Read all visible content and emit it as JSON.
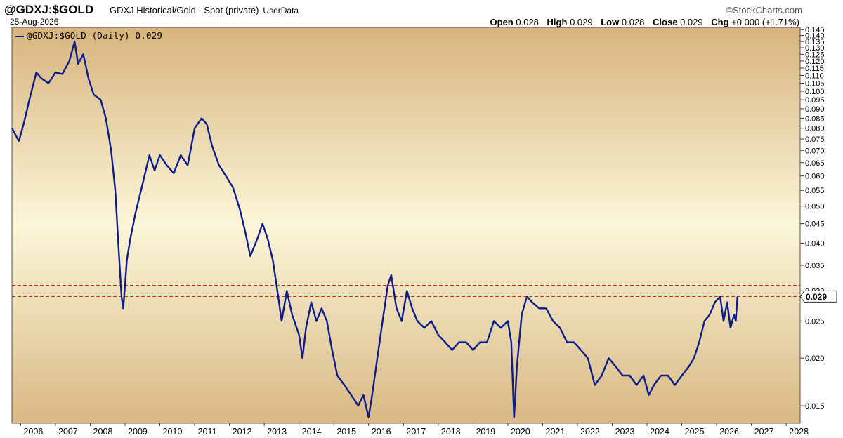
{
  "header": {
    "symbol": "@GDXJ:$GOLD",
    "description": "GDXJ Historical/Gold - Spot (private)",
    "userdata": "UserData",
    "date": "25-Aug-2026",
    "brand": "©StockCharts.com",
    "open_label": "Open",
    "open_value": "0.028",
    "high_label": "High",
    "high_value": "0.029",
    "low_label": "Low",
    "low_value": "0.028",
    "close_label": "Close",
    "close_value": "0.029",
    "chg_label": "Chg",
    "chg_value": "+0.000 (+1.71%)"
  },
  "legend": {
    "text": "@GDXJ:$GOLD (Daily) 0.029"
  },
  "colors": {
    "line": "#0b1d8c",
    "reference_lines": "#e8211c",
    "bg_top": "#d8b47e",
    "bg_mid": "#fbf6d8",
    "bg_bottom": "#d9b883"
  },
  "chart_data": {
    "type": "line",
    "scale": "log",
    "grid": false,
    "legend_position": "top-left",
    "xlim": [
      2005.75,
      2028.4
    ],
    "ylim": [
      0.0135,
      0.147
    ],
    "x_ticks": [
      "2006",
      "2007",
      "2008",
      "2009",
      "2010",
      "2011",
      "2012",
      "2013",
      "2014",
      "2015",
      "2016",
      "2017",
      "2018",
      "2019",
      "2020",
      "2021",
      "2022",
      "2023",
      "2024",
      "2025",
      "2026",
      "2027",
      "2028"
    ],
    "y_ticks": [
      "0.015",
      "0.020",
      "0.025",
      "0.030",
      "0.035",
      "0.040",
      "0.045",
      "0.050",
      "0.055",
      "0.060",
      "0.065",
      "0.070",
      "0.075",
      "0.080",
      "0.085",
      "0.090",
      "0.095",
      "0.100",
      "0.105",
      "0.110",
      "0.115",
      "0.120",
      "0.125",
      "0.130",
      "0.135",
      "0.140",
      "0.145"
    ],
    "last_value_label": "0.029",
    "reference_lines": [
      0.029,
      0.031
    ],
    "series": [
      {
        "values": [
          [
            2005.75,
            0.08
          ],
          [
            2005.95,
            0.074
          ],
          [
            2006.1,
            0.083
          ],
          [
            2006.25,
            0.095
          ],
          [
            2006.45,
            0.112
          ],
          [
            2006.6,
            0.108
          ],
          [
            2006.8,
            0.105
          ],
          [
            2007.0,
            0.112
          ],
          [
            2007.2,
            0.111
          ],
          [
            2007.4,
            0.12
          ],
          [
            2007.55,
            0.135
          ],
          [
            2007.65,
            0.118
          ],
          [
            2007.8,
            0.125
          ],
          [
            2007.95,
            0.108
          ],
          [
            2008.1,
            0.098
          ],
          [
            2008.3,
            0.095
          ],
          [
            2008.45,
            0.085
          ],
          [
            2008.6,
            0.07
          ],
          [
            2008.72,
            0.055
          ],
          [
            2008.82,
            0.038
          ],
          [
            2008.9,
            0.029
          ],
          [
            2008.95,
            0.027
          ],
          [
            2009.05,
            0.036
          ],
          [
            2009.15,
            0.041
          ],
          [
            2009.3,
            0.048
          ],
          [
            2009.5,
            0.057
          ],
          [
            2009.7,
            0.068
          ],
          [
            2009.85,
            0.062
          ],
          [
            2010.0,
            0.068
          ],
          [
            2010.2,
            0.064
          ],
          [
            2010.4,
            0.061
          ],
          [
            2010.6,
            0.068
          ],
          [
            2010.8,
            0.064
          ],
          [
            2011.0,
            0.08
          ],
          [
            2011.2,
            0.085
          ],
          [
            2011.35,
            0.082
          ],
          [
            2011.5,
            0.072
          ],
          [
            2011.7,
            0.064
          ],
          [
            2011.9,
            0.06
          ],
          [
            2012.1,
            0.056
          ],
          [
            2012.3,
            0.049
          ],
          [
            2012.45,
            0.043
          ],
          [
            2012.6,
            0.037
          ],
          [
            2012.8,
            0.041
          ],
          [
            2012.95,
            0.045
          ],
          [
            2013.1,
            0.041
          ],
          [
            2013.25,
            0.036
          ],
          [
            2013.4,
            0.029
          ],
          [
            2013.5,
            0.025
          ],
          [
            2013.65,
            0.03
          ],
          [
            2013.8,
            0.026
          ],
          [
            2014.0,
            0.023
          ],
          [
            2014.1,
            0.02
          ],
          [
            2014.2,
            0.024
          ],
          [
            2014.35,
            0.028
          ],
          [
            2014.5,
            0.025
          ],
          [
            2014.65,
            0.027
          ],
          [
            2014.8,
            0.025
          ],
          [
            2014.95,
            0.021
          ],
          [
            2015.1,
            0.018
          ],
          [
            2015.3,
            0.017
          ],
          [
            2015.5,
            0.016
          ],
          [
            2015.7,
            0.015
          ],
          [
            2015.85,
            0.016
          ],
          [
            2016.0,
            0.014
          ],
          [
            2016.1,
            0.016
          ],
          [
            2016.25,
            0.02
          ],
          [
            2016.4,
            0.025
          ],
          [
            2016.55,
            0.031
          ],
          [
            2016.65,
            0.033
          ],
          [
            2016.8,
            0.027
          ],
          [
            2016.95,
            0.025
          ],
          [
            2017.1,
            0.03
          ],
          [
            2017.25,
            0.027
          ],
          [
            2017.4,
            0.025
          ],
          [
            2017.6,
            0.024
          ],
          [
            2017.8,
            0.025
          ],
          [
            2018.0,
            0.023
          ],
          [
            2018.2,
            0.022
          ],
          [
            2018.4,
            0.021
          ],
          [
            2018.6,
            0.022
          ],
          [
            2018.8,
            0.022
          ],
          [
            2019.0,
            0.021
          ],
          [
            2019.2,
            0.022
          ],
          [
            2019.4,
            0.022
          ],
          [
            2019.6,
            0.025
          ],
          [
            2019.8,
            0.024
          ],
          [
            2020.0,
            0.025
          ],
          [
            2020.1,
            0.022
          ],
          [
            2020.18,
            0.014
          ],
          [
            2020.26,
            0.019
          ],
          [
            2020.4,
            0.026
          ],
          [
            2020.55,
            0.029
          ],
          [
            2020.7,
            0.028
          ],
          [
            2020.9,
            0.027
          ],
          [
            2021.1,
            0.027
          ],
          [
            2021.3,
            0.025
          ],
          [
            2021.5,
            0.024
          ],
          [
            2021.7,
            0.022
          ],
          [
            2021.9,
            0.022
          ],
          [
            2022.1,
            0.021
          ],
          [
            2022.3,
            0.02
          ],
          [
            2022.5,
            0.017
          ],
          [
            2022.7,
            0.018
          ],
          [
            2022.9,
            0.02
          ],
          [
            2023.1,
            0.019
          ],
          [
            2023.3,
            0.018
          ],
          [
            2023.5,
            0.018
          ],
          [
            2023.7,
            0.017
          ],
          [
            2023.9,
            0.018
          ],
          [
            2024.05,
            0.016
          ],
          [
            2024.2,
            0.017
          ],
          [
            2024.4,
            0.018
          ],
          [
            2024.6,
            0.018
          ],
          [
            2024.8,
            0.017
          ],
          [
            2025.0,
            0.018
          ],
          [
            2025.2,
            0.019
          ],
          [
            2025.35,
            0.02
          ],
          [
            2025.5,
            0.022
          ],
          [
            2025.65,
            0.025
          ],
          [
            2025.8,
            0.026
          ],
          [
            2025.95,
            0.028
          ],
          [
            2026.1,
            0.029
          ],
          [
            2026.2,
            0.025
          ],
          [
            2026.3,
            0.028
          ],
          [
            2026.4,
            0.024
          ],
          [
            2026.5,
            0.026
          ],
          [
            2026.55,
            0.025
          ],
          [
            2026.6,
            0.029
          ]
        ]
      }
    ]
  }
}
